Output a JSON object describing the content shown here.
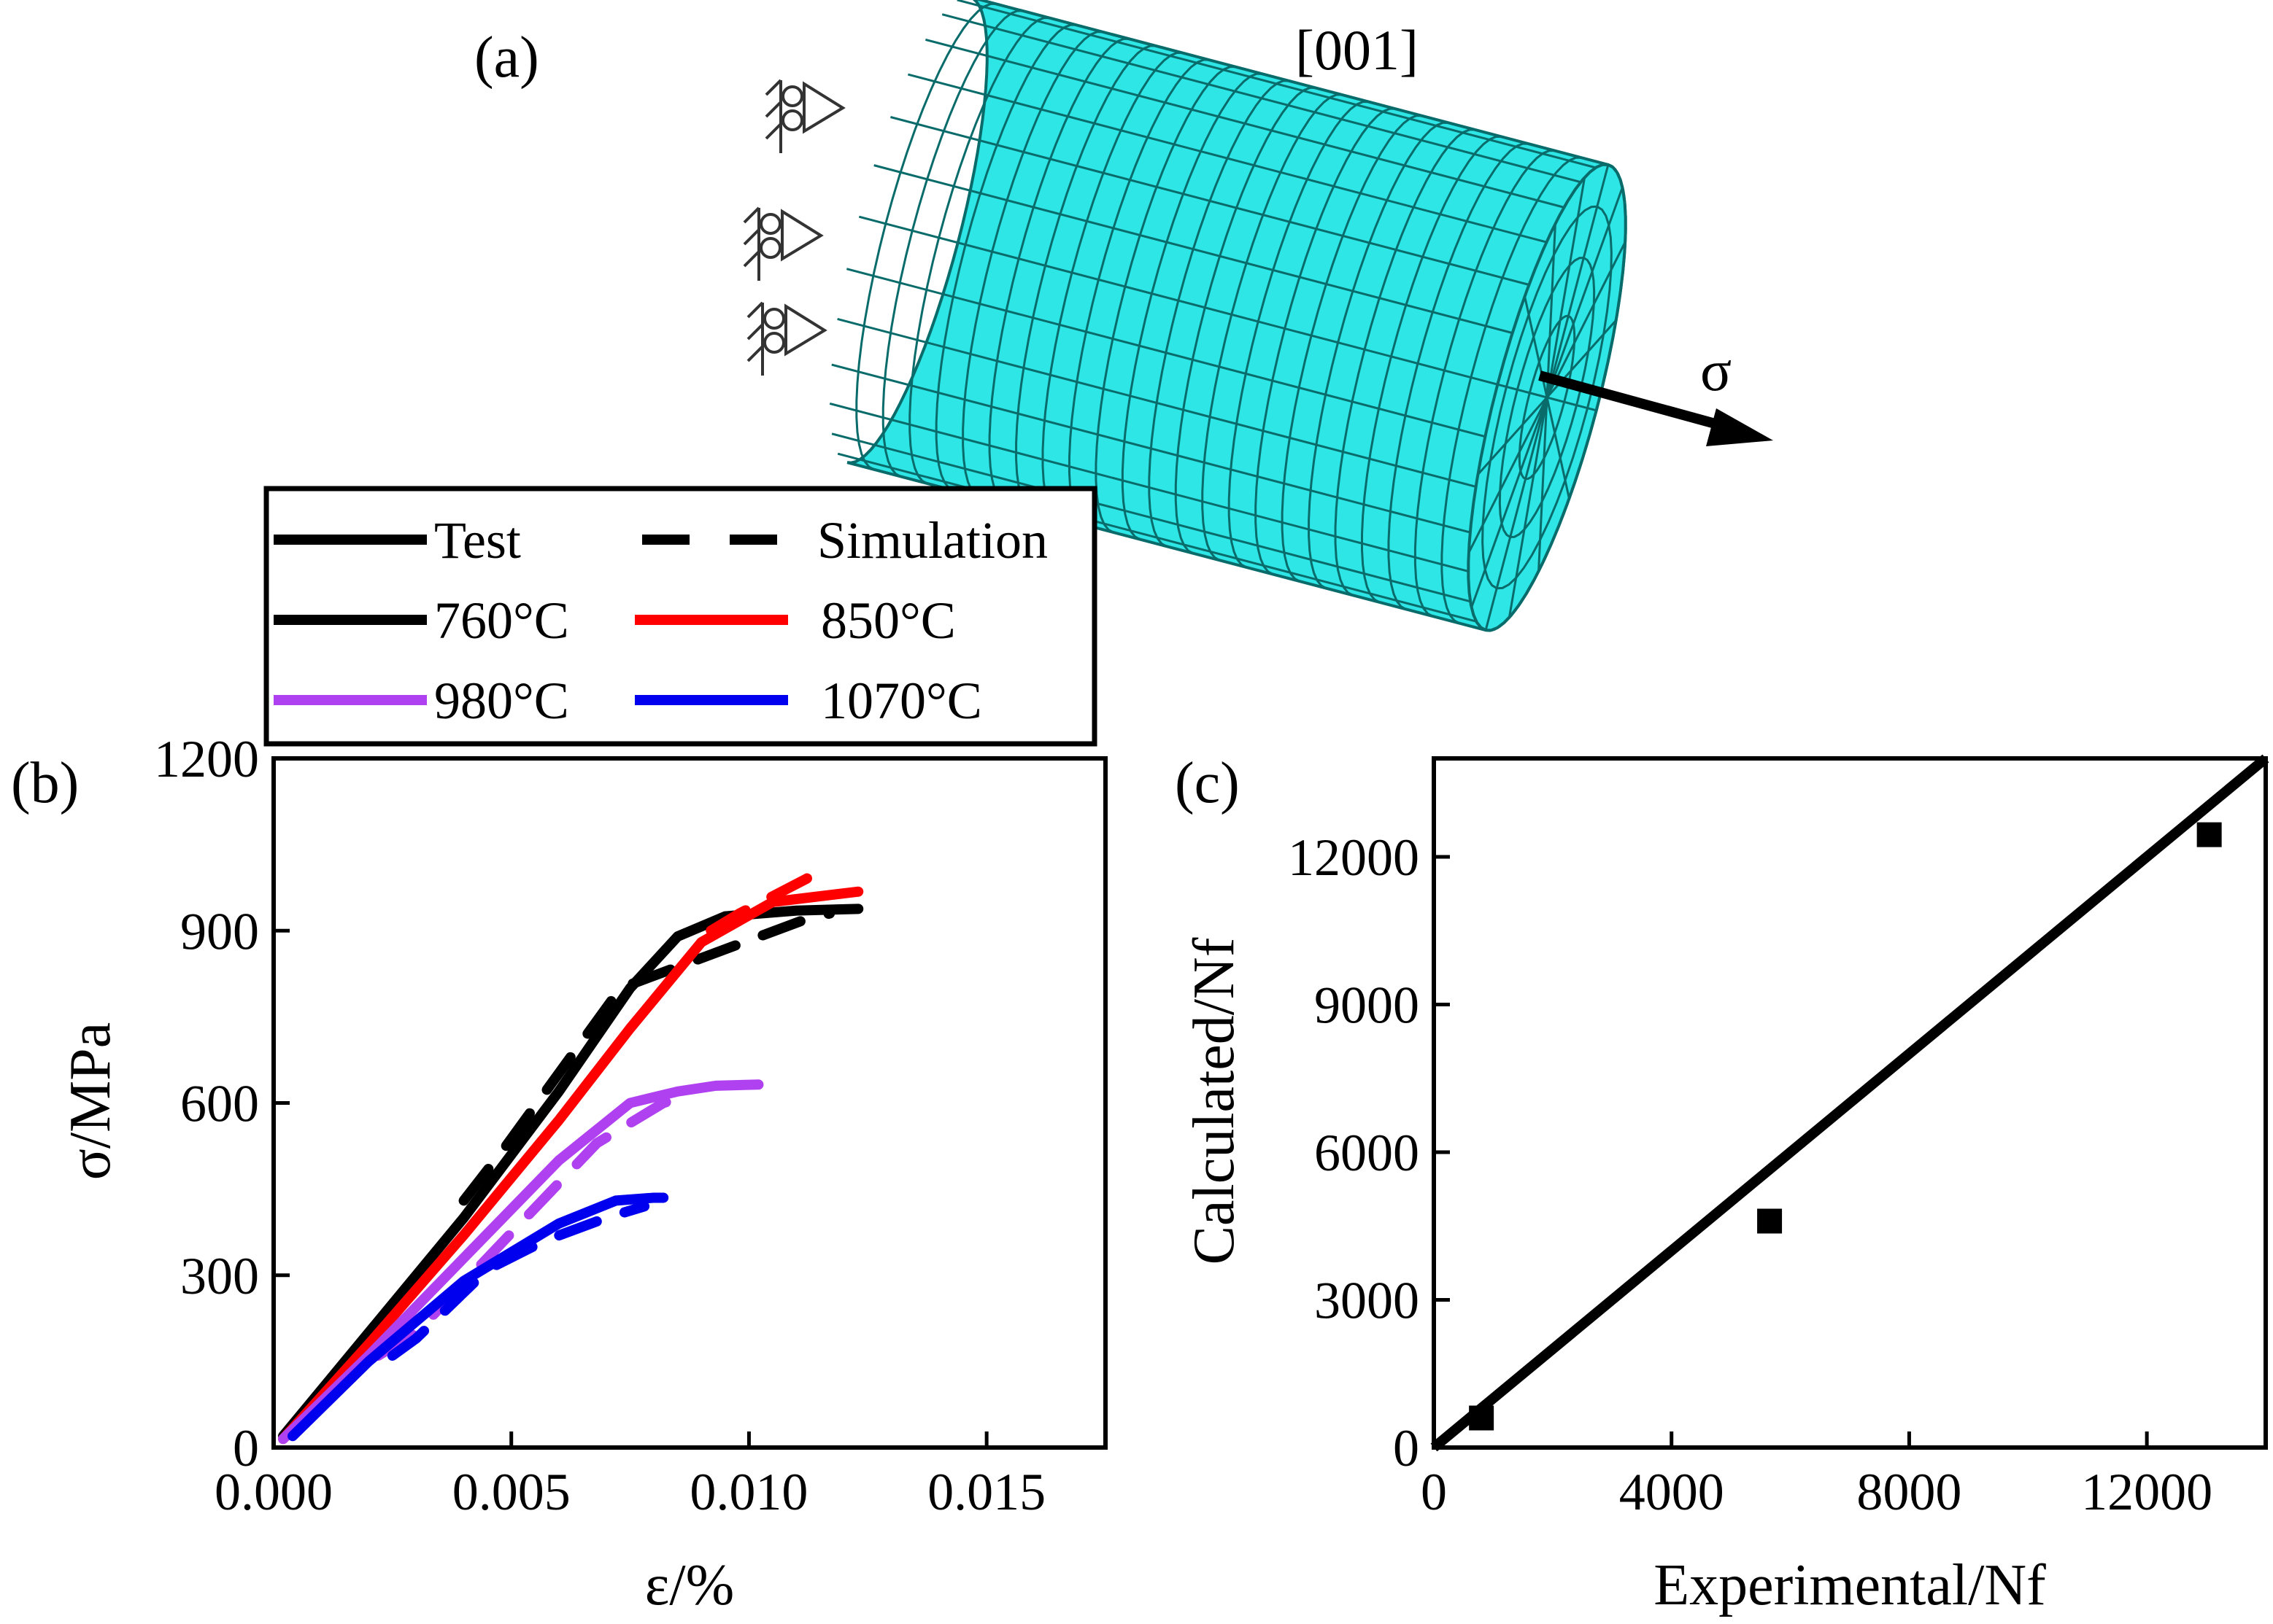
{
  "panel_a": {
    "label": "(a)",
    "direction_label": "[001]",
    "stress_label": "σ",
    "mesh_color": "#2ee6e6",
    "mesh_line_color": "#0a6b6b"
  },
  "panel_b": {
    "label": "(b)"
  },
  "panel_c": {
    "label": "(c)"
  },
  "legend": {
    "test_label": "Test",
    "simulation_label": "Simulation",
    "entries": [
      {
        "label": "760°C",
        "color": "#000000"
      },
      {
        "label": "850°C",
        "color": "#ff0000"
      },
      {
        "label": "980°C",
        "color": "#b041f0"
      },
      {
        "label": "1070°C",
        "color": "#0000ee"
      }
    ]
  },
  "chart_data": [
    {
      "type": "line",
      "xlabel": "ε/%",
      "ylabel": "σ/MPa",
      "xlim": [
        0,
        0.0175
      ],
      "ylim": [
        0,
        1200
      ],
      "xticks": [
        0,
        0.005,
        0.01,
        0.015
      ],
      "xtick_labels": [
        "0.000",
        "0.005",
        "0.010",
        "0.015"
      ],
      "yticks": [
        0,
        300,
        600,
        900,
        1200
      ],
      "ytick_labels": [
        "0",
        "300",
        "600",
        "900",
        "1200"
      ],
      "series": [
        {
          "name": "760°C",
          "kind": "Test",
          "color": "#000000",
          "x": [
            0.0002,
            0.002,
            0.004,
            0.006,
            0.0075,
            0.0085,
            0.0095,
            0.011,
            0.0123
          ],
          "y": [
            20,
            200,
            400,
            620,
            800,
            890,
            925,
            935,
            938
          ]
        },
        {
          "name": "760°C",
          "kind": "Simulation",
          "color": "#000000",
          "x": [
            0.004,
            0.0048,
            0.0066,
            0.0073,
            0.0112,
            0.0117
          ],
          "y": [
            430,
            515,
            720,
            800,
            920,
            930
          ]
        },
        {
          "name": "850°C",
          "kind": "Test",
          "color": "#ff0000",
          "x": [
            0.0002,
            0.002,
            0.004,
            0.006,
            0.0075,
            0.009,
            0.0105,
            0.0123
          ],
          "y": [
            15,
            180,
            370,
            570,
            730,
            880,
            950,
            968
          ]
        },
        {
          "name": "850°C",
          "kind": "Simulation",
          "color": "#ff0000",
          "x": [
            0.0092,
            0.0098,
            0.0112,
            0.0116
          ],
          "y": [
            900,
            930,
            990,
            1010
          ]
        },
        {
          "name": "980°C",
          "kind": "Test",
          "color": "#b041f0",
          "x": [
            0.0002,
            0.002,
            0.004,
            0.006,
            0.0075,
            0.0085,
            0.0093,
            0.0102
          ],
          "y": [
            15,
            160,
            330,
            500,
            600,
            620,
            630,
            632
          ]
        },
        {
          "name": "980°C",
          "kind": "Simulation",
          "color": "#b041f0",
          "x": [
            0.0022,
            0.003,
            0.0068,
            0.0072,
            0.0082,
            0.0088
          ],
          "y": [
            160,
            200,
            530,
            550,
            600,
            615
          ]
        },
        {
          "name": "1070°C",
          "kind": "Test",
          "color": "#0000ee",
          "x": [
            0.0004,
            0.002,
            0.004,
            0.006,
            0.0072,
            0.008,
            0.0082
          ],
          "y": [
            20,
            150,
            290,
            390,
            430,
            435,
            435
          ]
        },
        {
          "name": "1070°C",
          "kind": "Simulation",
          "color": "#0000ee",
          "x": [
            0.0025,
            0.003,
            0.0045,
            0.0057,
            0.007,
            0.0078
          ],
          "y": [
            160,
            190,
            310,
            360,
            400,
            420
          ]
        }
      ]
    },
    {
      "type": "scatter",
      "xlabel": "Experimental/Nf",
      "ylabel": "Calculated/Nf",
      "xlim": [
        0,
        14000
      ],
      "ylim": [
        0,
        14000
      ],
      "xticks": [
        0,
        4000,
        8000,
        12000
      ],
      "xtick_labels": [
        "0",
        "4000",
        "8000",
        "12000"
      ],
      "yticks": [
        0,
        3000,
        6000,
        9000,
        12000
      ],
      "ytick_labels": [
        "0",
        "3000",
        "6000",
        "9000",
        "12000"
      ],
      "points": {
        "x": [
          800,
          5650,
          13050
        ],
        "y": [
          600,
          4600,
          12450
        ]
      },
      "reference_line": {
        "x": [
          0,
          14000
        ],
        "y": [
          0,
          14000
        ]
      }
    }
  ]
}
